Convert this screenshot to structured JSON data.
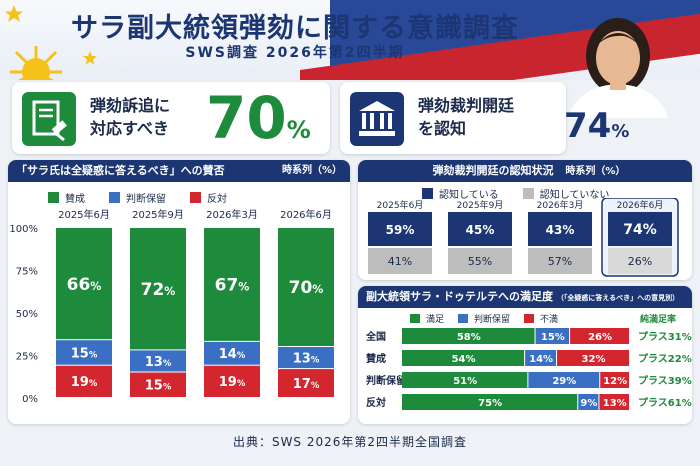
{
  "header": {
    "title": "サラ副大統領弾劾に関する意識調査",
    "subtitle": "SWS調査 2026年第2四半期"
  },
  "kpis": [
    {
      "label": "弾劾訴追に\n対応すべき",
      "value": "70",
      "unit": "%",
      "icon": "gavel-document-icon",
      "color": "#1e8a3c"
    },
    {
      "label": "弾劾裁判開廷\nを認知",
      "value": "74",
      "unit": "%",
      "icon": "courthouse-icon",
      "color": "#1b3672"
    }
  ],
  "colors": {
    "green": "#1e8a3c",
    "blue": "#3a6fc4",
    "red": "#d3262e",
    "navy": "#1b3672",
    "gray": "#bdbdbd"
  },
  "left_panel": {
    "title": "「サラ氏は全疑惑に答えるべき」への賛否",
    "title_note": "時系列（%）"
  },
  "top_right_panel": {
    "title": "弾劾裁判開廷の認知状況",
    "title_note": "時系列（%）"
  },
  "bottom_right_panel": {
    "title": "副大統領サラ・ドゥテルテへの満足度",
    "title_note": "（「全疑惑に答えるべき」への意見別）",
    "title_unit": "（%）",
    "net_header": "純満足率"
  },
  "footer": "出典：SWS 2026年第2四半期全国調査",
  "chart_data": [
    {
      "type": "bar",
      "stacked": true,
      "categories": [
        "2025年6月",
        "2025年9月",
        "2026年3月",
        "2026年6月"
      ],
      "series": [
        {
          "name": "賛成",
          "values": [
            66,
            72,
            67,
            70
          ],
          "color": "#1e8a3c"
        },
        {
          "name": "判断保留",
          "values": [
            15,
            13,
            14,
            13
          ],
          "color": "#3a6fc4"
        },
        {
          "name": "反対",
          "values": [
            19,
            15,
            19,
            17
          ],
          "color": "#d3262e"
        }
      ],
      "ylim": [
        0,
        100
      ],
      "yticks": [
        "0%",
        "25%",
        "50%",
        "75%",
        "100%"
      ],
      "legend": "top"
    },
    {
      "type": "bar",
      "stacked": true,
      "categories": [
        "2025年6月",
        "2025年9月",
        "2026年3月",
        "2026年6月"
      ],
      "series": [
        {
          "name": "認知している",
          "values": [
            59,
            45,
            43,
            74
          ],
          "color": "#1b3672"
        },
        {
          "name": "認知していない",
          "values": [
            41,
            55,
            57,
            26
          ],
          "color": "#bdbdbd"
        }
      ],
      "highlight": "2026年6月",
      "legend": "top"
    },
    {
      "type": "bar",
      "orientation": "horizontal",
      "stacked": true,
      "categories": [
        "全国",
        "賛成",
        "判断保留",
        "反対"
      ],
      "series": [
        {
          "name": "満足",
          "values": [
            58,
            54,
            51,
            75
          ],
          "color": "#1e8a3c"
        },
        {
          "name": "判断保留",
          "values": [
            15,
            14,
            29,
            9
          ],
          "color": "#3a6fc4"
        },
        {
          "name": "不満",
          "values": [
            26,
            32,
            12,
            13
          ],
          "color": "#d3262e"
        }
      ],
      "net_satisfaction": [
        "プラス31%",
        "プラス22%",
        "プラス39%",
        "プラス61%"
      ],
      "legend": "top"
    }
  ]
}
